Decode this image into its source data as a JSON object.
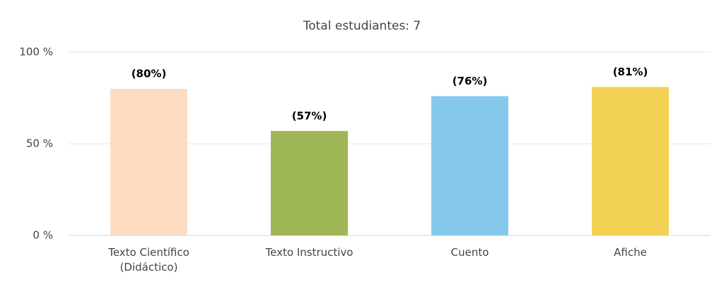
{
  "chart_data": {
    "type": "bar",
    "title": "Total estudiantes: 7",
    "categories": [
      "Texto Científico (Didáctico)",
      "Texto Instructivo",
      "Cuento",
      "Afiche"
    ],
    "values": [
      80,
      57,
      76,
      81
    ],
    "value_labels": [
      "(80%)",
      "(57%)",
      "(76%)",
      "(81%)"
    ],
    "colors": [
      "#fddcc1",
      "#9fb757",
      "#86c8ec",
      "#f2d155"
    ],
    "ylim": [
      0,
      100
    ],
    "yticks": [
      {
        "value": 0,
        "label": "0 %"
      },
      {
        "value": 50,
        "label": "50 %"
      },
      {
        "value": 100,
        "label": "100 %"
      }
    ],
    "grid": true
  }
}
